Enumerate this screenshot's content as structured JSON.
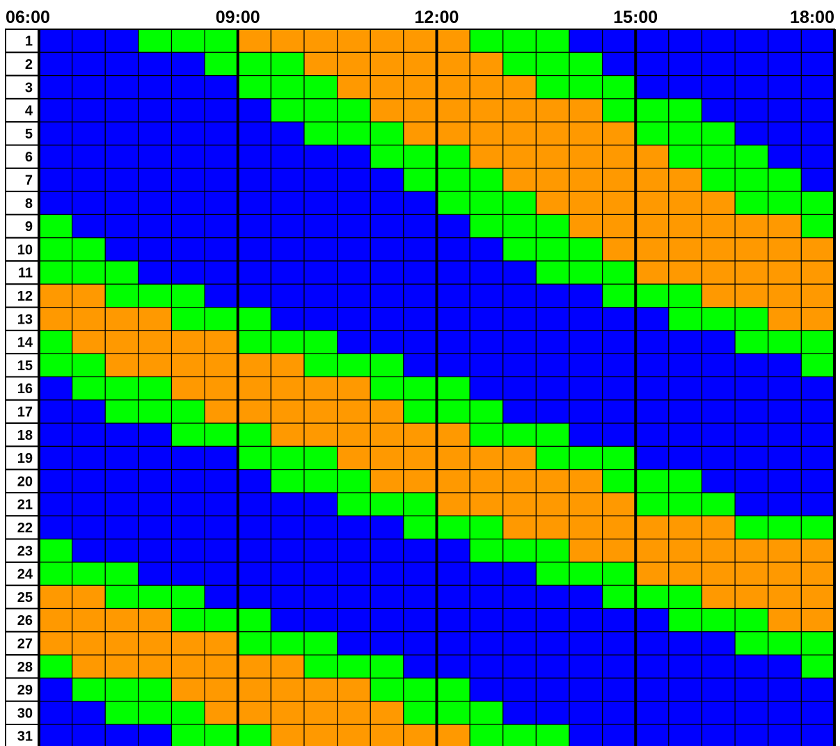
{
  "chart_data": {
    "type": "heatmap",
    "title": "",
    "xlabel": "",
    "ylabel": "",
    "x_tick_labels": [
      "06:00",
      "09:00",
      "12:00",
      "15:00",
      "18:00"
    ],
    "row_labels": [
      "1",
      "2",
      "3",
      "4",
      "5",
      "6",
      "7",
      "8",
      "9",
      "10",
      "11",
      "12",
      "13",
      "14",
      "15",
      "16",
      "17",
      "18",
      "19",
      "20",
      "21",
      "22",
      "23",
      "24",
      "25",
      "26",
      "27",
      "28",
      "29",
      "30",
      "31"
    ],
    "columns_per_row": 24,
    "color_codes": {
      "B": "#0000ff",
      "G": "#00ff00",
      "O": "#ff9900"
    },
    "grid": true,
    "rows": [
      "BBBGGGOOOOOOOGGGBBBBBBBB",
      "BBBBBGGGOOOOOOGGGBBBBBBB",
      "BBBBBBGGGOOOOOOGGGBBBBBB",
      "BBBBBBBGGGOOOOOOOGGGBBBB",
      "BBBBBBBBGGGOOOOOOOGGGBBB",
      "BBBBBBBBBBGGGOOOOOOGGGBB",
      "BBBBBBBBBBBGGGOOOOOOGGGB",
      "BBBBBBBBBBBBGGGOOOOOOGGG",
      "GBBBBBBBBBBBBGGGOOOOOOOG",
      "GGBBBBBBBBBBBBGGGOOOOOOO",
      "GGGBBBBBBBBBBBBGGGOOOOOO",
      "OOGGGBBBBBBBBBBBBGGGOOOO",
      "OOOOGGGBBBBBBBBBBBBGGGOO",
      "GOOOOOGGGBBBBBBBBBBBBGGG",
      "GGOOOOOOGGGBBBBBBBBBBBBG",
      "BGGGOOOOOOGGGBBBBBBBBBBB",
      "BBGGGOOOOOOGGGBBBBBBBBBB",
      "BBBBGGGOOOOOOGGGBBBBBBBB",
      "BBBBBBGGGOOOOOOGGGBBBBBB",
      "BBBBBBBGGGOOOOOOOGGGBBBB",
      "BBBBBBBBBGGGOOOOOOGGGBBB",
      "BBBBBBBBBBBGGGOOOOOOOGGG",
      "GBBBBBBBBBBBBGGGOOOOOOOO",
      "GGGBBBBBBBBBBBBGGGOOOOOO",
      "OOGGGBBBBBBBBBBBBGGGOOOO",
      "OOOOGGGBBBBBBBBBBBBGGGOO",
      "OOOOOOGGGBBBBBBBBBBBBGGG",
      "GOOOOOOOGGGBBBBBBBBBBBBG",
      "BGGGOOOOOOGGGBBBBBBBBBBB",
      "BBGGGOOOOOOGGGBBBBBBBBBB",
      "BBBBGGGOOOOOOGGGBBBBBBBB"
    ]
  }
}
